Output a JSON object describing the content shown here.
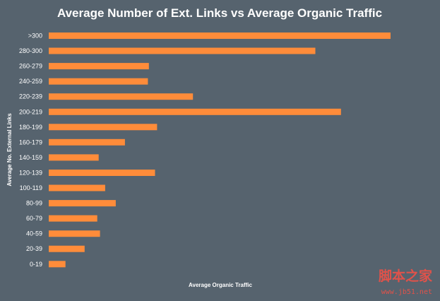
{
  "chart_data": {
    "type": "bar",
    "orientation": "horizontal",
    "title": "Average Number of Ext. Links vs Average Organic Traffic",
    "xlabel": "Average Organic Traffic",
    "ylabel": "Average No. External Links",
    "categories": [
      ">300",
      "280-300",
      "260-279",
      "240-259",
      "220-239",
      "200-219",
      "180-199",
      "160-179",
      "140-159",
      "120-139",
      "100-119",
      "80-99",
      "60-79",
      "40-59",
      "20-39",
      "0-19"
    ],
    "values": [
      100,
      78,
      29.3,
      29,
      42.2,
      85.5,
      31.7,
      22.3,
      14.6,
      31.1,
      16.5,
      19.6,
      14.2,
      15,
      10.5,
      4.9
    ],
    "xlim": [
      0,
      100
    ],
    "grid": false,
    "bar_color": "#ff8c3a"
  },
  "watermark": {
    "text_cn": "脚本之家",
    "url": "www.jb51.net"
  }
}
